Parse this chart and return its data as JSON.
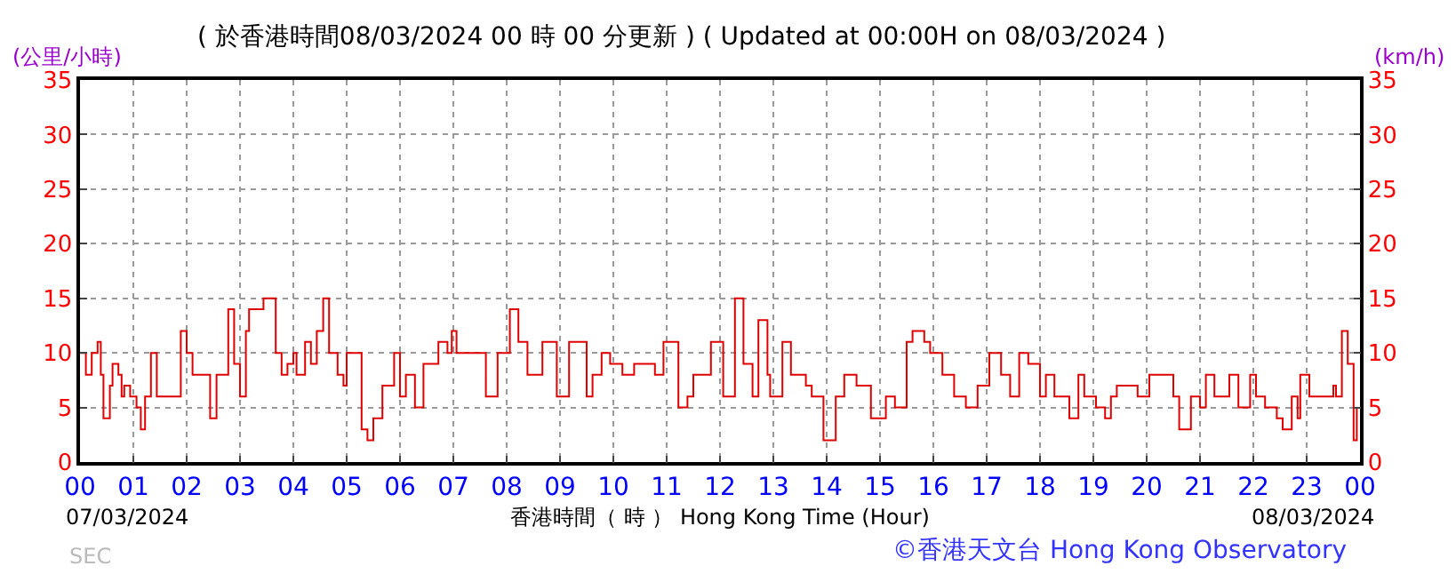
{
  "chart_data": {
    "type": "step",
    "title": "( 於香港時間08/03/2024 00 時 00 分更新 ) ( Updated at 00:00H on 08/03/2024 )",
    "ylabel": "(公里/小時)",
    "y2label": "(km/h)",
    "xlabel": "香港時間（ 時 ） Hong Kong Time (Hour)",
    "annotations": [
      "07/03/2024",
      "08/03/2024",
      "©香港天文台 Hong Kong Observatory",
      "SEC"
    ],
    "x": [
      0,
      0.11,
      0.22,
      0.33,
      0.39,
      0.44,
      0.56,
      0.61,
      0.72,
      0.78,
      0.83,
      0.94,
      1.06,
      1.14,
      1.22,
      1.33,
      1.44,
      1.78,
      1.89,
      2.0,
      2.11,
      2.33,
      2.44,
      2.56,
      2.78,
      2.89,
      3.0,
      3.11,
      3.17,
      3.44,
      3.67,
      3.78,
      3.89,
      4.0,
      4.06,
      4.22,
      4.33,
      4.44,
      4.56,
      4.67,
      4.83,
      4.94,
      5.0,
      5.11,
      5.28,
      5.39,
      5.5,
      5.67,
      5.89,
      6.0,
      6.11,
      6.28,
      6.44,
      6.61,
      6.72,
      6.89,
      6.97,
      7.06,
      7.5,
      7.61,
      7.83,
      8.06,
      8.22,
      8.39,
      8.67,
      8.94,
      9.17,
      9.5,
      9.61,
      9.78,
      9.94,
      10.17,
      10.39,
      10.61,
      10.78,
      10.94,
      11.06,
      11.22,
      11.39,
      11.5,
      11.83,
      12.06,
      12.28,
      12.44,
      12.61,
      12.72,
      12.89,
      12.94,
      13.17,
      13.33,
      13.61,
      13.72,
      13.94,
      14.17,
      14.33,
      14.56,
      14.83,
      14.94,
      15.11,
      15.28,
      15.5,
      15.61,
      15.83,
      15.94,
      16.17,
      16.39,
      16.61,
      16.83,
      17.05,
      17.27,
      17.44,
      17.61,
      17.78,
      18.0,
      18.11,
      18.27,
      18.55,
      18.72,
      18.83,
      19.05,
      19.22,
      19.33,
      19.44,
      19.83,
      20.05,
      20.33,
      20.5,
      20.61,
      20.83,
      21.0,
      21.11,
      21.27,
      21.55,
      21.72,
      21.94,
      22.05,
      22.22,
      22.44,
      22.55,
      22.72,
      22.83,
      22.88,
      23.05,
      23.38,
      23.5,
      23.55,
      23.66,
      23.77,
      23.88,
      23.94
    ],
    "series": [
      {
        "color": "#e00000",
        "values": [
          10,
          8,
          10,
          11,
          8,
          4,
          7,
          9,
          8,
          6,
          7,
          6,
          5,
          3,
          6,
          10,
          6,
          6,
          12,
          10,
          8,
          8,
          4,
          8,
          14,
          9,
          6,
          12,
          14,
          15,
          10,
          8,
          9,
          10,
          8,
          11,
          9,
          12,
          15,
          10,
          8,
          7,
          10,
          10,
          3,
          2,
          4,
          7,
          10,
          6,
          8,
          5,
          9,
          9,
          11,
          10,
          12,
          10,
          10,
          6,
          10,
          14,
          11,
          8,
          11,
          6,
          11,
          6,
          8,
          10,
          9,
          8,
          9,
          9,
          8,
          11,
          11,
          5,
          6,
          8,
          11,
          6,
          15,
          9,
          6,
          13,
          8,
          6,
          11,
          8,
          7,
          6,
          2,
          6,
          8,
          7,
          4,
          4,
          6,
          5,
          11,
          12,
          11,
          10,
          8,
          6,
          5,
          7,
          10,
          8,
          6,
          10,
          9,
          6,
          8,
          6,
          4,
          8,
          6,
          5,
          4,
          6,
          7,
          6,
          8,
          8,
          6,
          3,
          6,
          5,
          8,
          6,
          8,
          5,
          8,
          6,
          5,
          4,
          3,
          6,
          4,
          8,
          6,
          6,
          7,
          6,
          12,
          9,
          2,
          5
        ]
      }
    ],
    "xlim": [
      0,
      24
    ],
    "xticks": [
      {
        "value": 0,
        "label": "00"
      },
      {
        "value": 1,
        "label": "01"
      },
      {
        "value": 2,
        "label": "02"
      },
      {
        "value": 3,
        "label": "03"
      },
      {
        "value": 4,
        "label": "04"
      },
      {
        "value": 5,
        "label": "05"
      },
      {
        "value": 6,
        "label": "06"
      },
      {
        "value": 7,
        "label": "07"
      },
      {
        "value": 8,
        "label": "08"
      },
      {
        "value": 9,
        "label": "09"
      },
      {
        "value": 10,
        "label": "10"
      },
      {
        "value": 11,
        "label": "11"
      },
      {
        "value": 12,
        "label": "12"
      },
      {
        "value": 13,
        "label": "13"
      },
      {
        "value": 14,
        "label": "14"
      },
      {
        "value": 15,
        "label": "15"
      },
      {
        "value": 16,
        "label": "16"
      },
      {
        "value": 17,
        "label": "17"
      },
      {
        "value": 18,
        "label": "18"
      },
      {
        "value": 19,
        "label": "19"
      },
      {
        "value": 20,
        "label": "20"
      },
      {
        "value": 21,
        "label": "21"
      },
      {
        "value": 22,
        "label": "22"
      },
      {
        "value": 23,
        "label": "23"
      },
      {
        "value": 24,
        "label": "00"
      }
    ],
    "ylim": [
      0,
      35
    ],
    "yticks": [
      0,
      5,
      10,
      15,
      20,
      25,
      30,
      35
    ],
    "y2lim": [
      0,
      35
    ],
    "y2ticks": [
      0,
      5,
      10,
      15,
      20,
      25,
      30,
      35
    ],
    "grid": true,
    "line_style": "solid",
    "marker": "none"
  }
}
